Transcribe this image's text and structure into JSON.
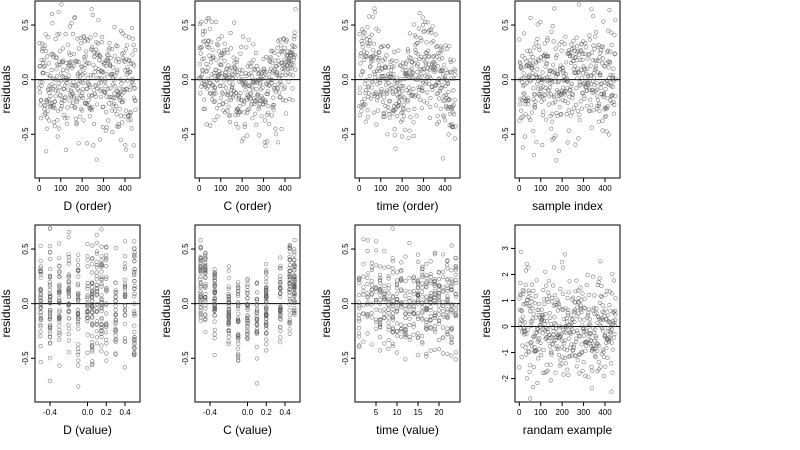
{
  "chart_data": [
    {
      "type": "scatter",
      "xlabel": "D (order)",
      "ylabel": "residuals",
      "xlim": [
        -20,
        470
      ],
      "ylim": [
        -0.9,
        0.72
      ],
      "xticks": [
        0,
        100,
        200,
        300,
        400
      ],
      "xtick_labels": [
        "0",
        "100",
        "200",
        "300",
        "400"
      ],
      "yticks": [
        -0.5,
        0,
        0.5
      ],
      "ytick_labels": [
        "-0.5",
        "0.0",
        "0.5"
      ],
      "pattern": "index",
      "n": 450,
      "seed": 11,
      "spread": 0.26,
      "hline": 0
    },
    {
      "type": "scatter",
      "xlabel": "C (order)",
      "ylabel": "residuals",
      "xlim": [
        -20,
        470
      ],
      "ylim": [
        -0.9,
        0.72
      ],
      "xticks": [
        0,
        100,
        200,
        300,
        400
      ],
      "xtick_labels": [
        "0",
        "100",
        "200",
        "300",
        "400"
      ],
      "yticks": [
        -0.5,
        0,
        0.5
      ],
      "ytick_labels": [
        "-0.5",
        "0.0",
        "0.5"
      ],
      "pattern": "u-index",
      "n": 450,
      "seed": 23,
      "spread": 0.2,
      "hline": 0
    },
    {
      "type": "scatter",
      "xlabel": "time (order)",
      "ylabel": "residuals",
      "xlim": [
        -20,
        470
      ],
      "ylim": [
        -0.9,
        0.72
      ],
      "xticks": [
        0,
        100,
        200,
        300,
        400
      ],
      "xtick_labels": [
        "0",
        "100",
        "200",
        "300",
        "400"
      ],
      "yticks": [
        -0.5,
        0,
        0.5
      ],
      "ytick_labels": [
        "-0.5",
        "0.0",
        "0.5"
      ],
      "pattern": "wave-index",
      "n": 450,
      "seed": 37,
      "spread": 0.22,
      "hline": 0
    },
    {
      "type": "scatter",
      "xlabel": "sample index",
      "ylabel": "residuals",
      "xlim": [
        -20,
        470
      ],
      "ylim": [
        -0.9,
        0.72
      ],
      "xticks": [
        0,
        100,
        200,
        300,
        400
      ],
      "xtick_labels": [
        "0",
        "100",
        "200",
        "300",
        "400"
      ],
      "yticks": [
        -0.5,
        0,
        0.5
      ],
      "ytick_labels": [
        "-0.5",
        "0.0",
        "0.5"
      ],
      "pattern": "index",
      "n": 450,
      "seed": 53,
      "spread": 0.26,
      "hline": 0
    },
    {
      "type": "scatter",
      "xlabel": "D (value)",
      "ylabel": "residuals",
      "xlim": [
        -0.56,
        0.56
      ],
      "ylim": [
        -0.9,
        0.72
      ],
      "xticks": [
        -0.4,
        0,
        0.2,
        0.4
      ],
      "xtick_labels": [
        "-0.4",
        "0.0",
        "0.2",
        "0.4"
      ],
      "yticks": [
        -0.5,
        0,
        0.5
      ],
      "ytick_labels": [
        "-0.5",
        "0.0",
        "0.5"
      ],
      "pattern": "discrete",
      "levels": [
        -0.5,
        -0.4,
        -0.3,
        -0.2,
        -0.1,
        0,
        0.05,
        0.1,
        0.15,
        0.2,
        0.3,
        0.4,
        0.5
      ],
      "n": 450,
      "seed": 67,
      "spread": 0.26,
      "hline": 0
    },
    {
      "type": "scatter",
      "xlabel": "C (value)",
      "ylabel": "residuals",
      "xlim": [
        -0.56,
        0.56
      ],
      "ylim": [
        -0.9,
        0.72
      ],
      "xticks": [
        -0.4,
        0,
        0.2,
        0.4
      ],
      "xtick_labels": [
        "-0.4",
        "0.0",
        "0.2",
        "0.4"
      ],
      "yticks": [
        -0.5,
        0,
        0.5
      ],
      "ytick_labels": [
        "-0.5",
        "0.0",
        "0.5"
      ],
      "pattern": "discrete-u",
      "levels": [
        -0.5,
        -0.45,
        -0.35,
        -0.2,
        -0.1,
        0,
        0.1,
        0.2,
        0.35,
        0.45,
        0.5
      ],
      "n": 450,
      "seed": 79,
      "spread": 0.2,
      "hline": 0
    },
    {
      "type": "scatter",
      "xlabel": "time (value)",
      "ylabel": "residuals",
      "xlim": [
        0,
        25
      ],
      "ylim": [
        -0.9,
        0.72
      ],
      "xticks": [
        5,
        10,
        15,
        20
      ],
      "xtick_labels": [
        "5",
        "10",
        "15",
        "20"
      ],
      "yticks": [
        -0.5,
        0,
        0.5
      ],
      "ytick_labels": [
        "-0.5",
        "0.0",
        "0.5"
      ],
      "pattern": "discrete",
      "levels": [
        1,
        2,
        3,
        4,
        5,
        6,
        7,
        8,
        9,
        10,
        11,
        12,
        13,
        14,
        15,
        16,
        17,
        18,
        19,
        20,
        21,
        22,
        23,
        24
      ],
      "n": 450,
      "seed": 97,
      "spread": 0.24,
      "hline": 0
    },
    {
      "type": "scatter",
      "xlabel": "randam example",
      "ylabel": "residuals",
      "xlim": [
        -20,
        470
      ],
      "ylim": [
        -2.9,
        3.9
      ],
      "xticks": [
        0,
        100,
        200,
        300,
        400
      ],
      "xtick_labels": [
        "0",
        "100",
        "200",
        "300",
        "400"
      ],
      "yticks": [
        -2,
        -1,
        0,
        1,
        2,
        3
      ],
      "ytick_labels": [
        "-2",
        "-1",
        "0",
        "1",
        "2",
        "3"
      ],
      "pattern": "index",
      "n": 450,
      "seed": 113,
      "spread": 1.0,
      "hline": 0
    }
  ]
}
